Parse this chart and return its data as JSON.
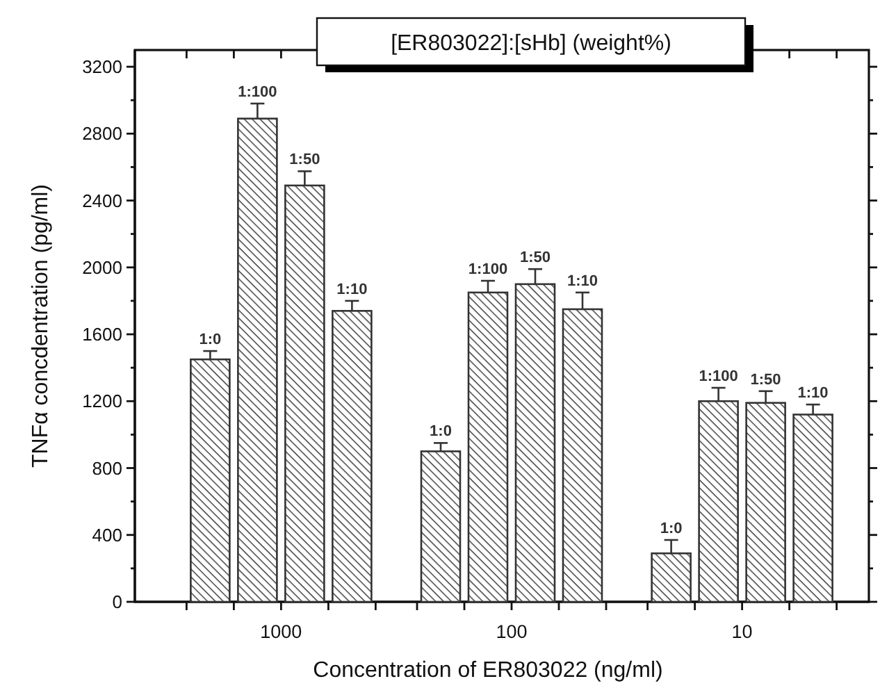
{
  "chart_data": {
    "type": "bar",
    "title": "[ER803022]:[sHb] (weight%)",
    "xlabel": "Concentration of ER803022 (ng/ml)",
    "ylabel": "TNFα concdentration (pg/ml)",
    "categories": [
      "1000",
      "100",
      "10"
    ],
    "series": [
      {
        "name": "1:0",
        "color": "#333333",
        "values": [
          1450,
          900,
          290
        ],
        "errors": [
          50,
          50,
          80
        ]
      },
      {
        "name": "1:100",
        "color": "#333333",
        "values": [
          2890,
          1850,
          1200
        ],
        "errors": [
          90,
          70,
          80
        ]
      },
      {
        "name": "1:50",
        "color": "#333333",
        "values": [
          2490,
          1900,
          1190
        ],
        "errors": [
          85,
          90,
          70
        ]
      },
      {
        "name": "1:10",
        "color": "#333333",
        "values": [
          1740,
          1750,
          1120
        ],
        "errors": [
          60,
          100,
          60
        ]
      }
    ],
    "ylim": [
      0,
      3300
    ],
    "yticks": [
      0,
      400,
      800,
      1200,
      1600,
      2000,
      2400,
      2800,
      3200
    ],
    "grid": false,
    "legend": false
  }
}
